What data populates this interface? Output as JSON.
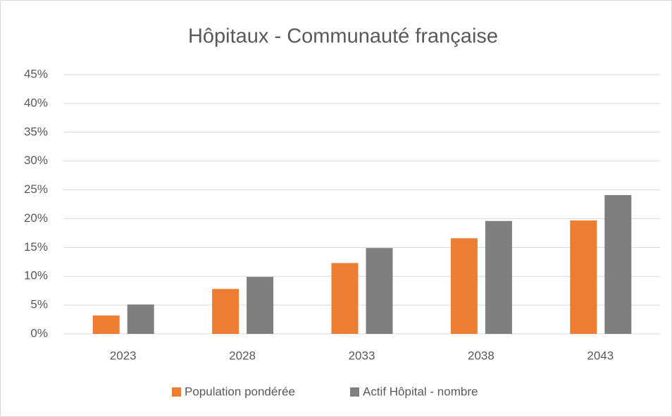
{
  "chart_data": {
    "type": "bar",
    "title": "Hôpitaux - Communauté française",
    "categories": [
      "2023",
      "2028",
      "2033",
      "2038",
      "2043"
    ],
    "series": [
      {
        "name": "Population pondérée",
        "color": "#ed7d31",
        "values": [
          3.2,
          7.8,
          12.3,
          16.6,
          19.7
        ]
      },
      {
        "name": "Actif Hôpital - nombre",
        "color": "#7f7f7f",
        "values": [
          5.1,
          9.9,
          14.9,
          19.6,
          24.1
        ]
      }
    ],
    "ylim": [
      0,
      45
    ],
    "yticks": [
      {
        "value": 0,
        "label": "0%"
      },
      {
        "value": 5,
        "label": "5%"
      },
      {
        "value": 10,
        "label": "10%"
      },
      {
        "value": 15,
        "label": "15%"
      },
      {
        "value": 20,
        "label": "20%"
      },
      {
        "value": 25,
        "label": "25%"
      },
      {
        "value": 30,
        "label": "30%"
      },
      {
        "value": 35,
        "label": "35%"
      },
      {
        "value": 40,
        "label": "40%"
      },
      {
        "value": 45,
        "label": "45%"
      }
    ],
    "grid": true,
    "legend": "bottom"
  }
}
